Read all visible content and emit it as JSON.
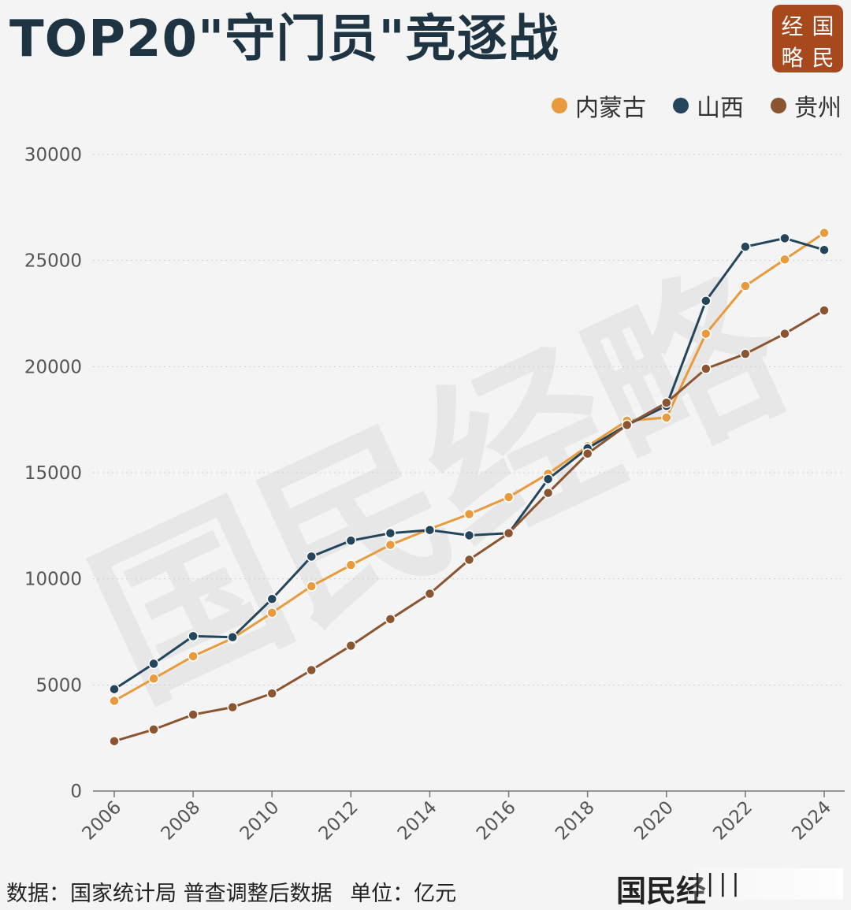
{
  "title": "TOP20\"守门员\"竞逐战",
  "logo": {
    "chars": [
      "经",
      "国",
      "略",
      "民"
    ]
  },
  "watermark_text": "国民经略",
  "footer": {
    "source": "数据：国家统计局 普查调整后数据",
    "unit": "单位：亿元",
    "brand": "国民经",
    "brand_tail": "||||"
  },
  "colors": {
    "title": "#1e3442",
    "inner_mongolia": "#e89a3c",
    "shanxi": "#24465c",
    "guizhou": "#8a5530",
    "logo_bg": "#a8481d"
  },
  "chart_data": {
    "type": "line",
    "x": [
      2006,
      2007,
      2008,
      2009,
      2010,
      2011,
      2012,
      2013,
      2014,
      2015,
      2016,
      2017,
      2018,
      2019,
      2020,
      2021,
      2022,
      2023,
      2024
    ],
    "x_tick_labels": [
      "2006",
      "2008",
      "2010",
      "2012",
      "2014",
      "2016",
      "2018",
      "2020",
      "2022",
      "2024"
    ],
    "y_tick_labels": [
      "0",
      "5000",
      "10000",
      "15000",
      "20000",
      "25000",
      "30000"
    ],
    "ylim": [
      0,
      30000
    ],
    "grid": "horizontal-dotted",
    "legend_position": "top-right",
    "series": [
      {
        "name": "内蒙古",
        "color": "#e89a3c",
        "values": [
          4250,
          5300,
          6350,
          7200,
          8400,
          9650,
          10650,
          11600,
          12350,
          13050,
          13850,
          14950,
          16250,
          17450,
          17600,
          21550,
          23800,
          25050,
          26300
        ]
      },
      {
        "name": "山西",
        "color": "#24465c",
        "values": [
          4800,
          6000,
          7300,
          7250,
          9050,
          11050,
          11800,
          12150,
          12300,
          12050,
          12150,
          14700,
          16150,
          17250,
          18150,
          23100,
          25650,
          26050,
          25500
        ]
      },
      {
        "name": "贵州",
        "color": "#8a5530",
        "values": [
          2350,
          2900,
          3600,
          3950,
          4600,
          5700,
          6850,
          8100,
          9300,
          10900,
          12150,
          14050,
          15900,
          17250,
          18300,
          19900,
          20600,
          21550,
          22650
        ]
      }
    ]
  }
}
